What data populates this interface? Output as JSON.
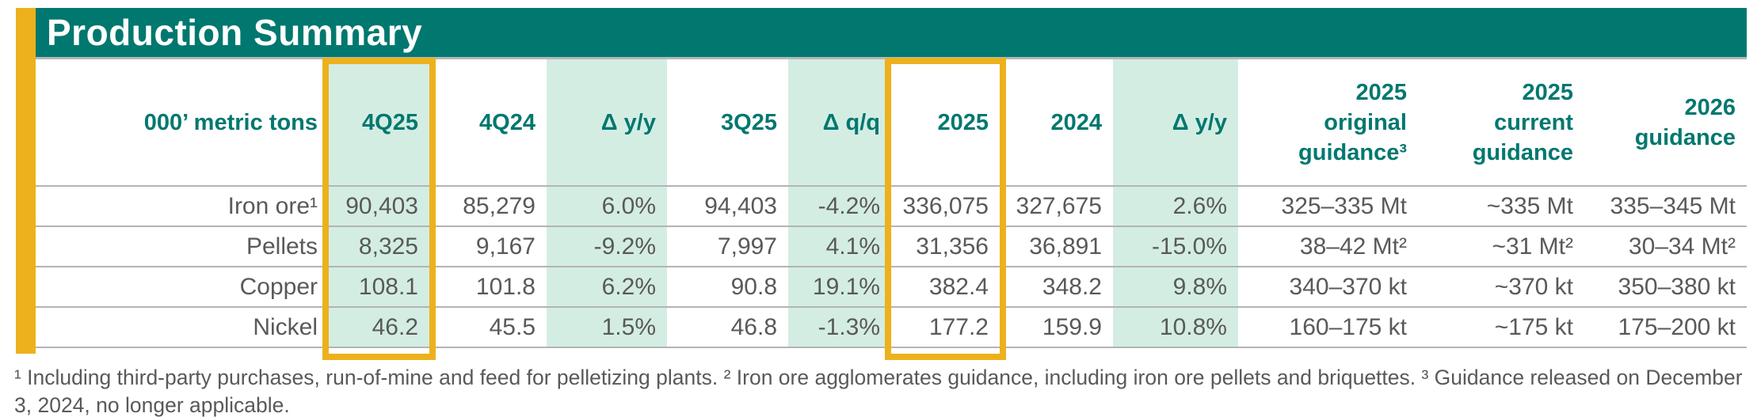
{
  "title": "Production Summary",
  "colors": {
    "teal": "#00786F",
    "gold": "#ECB11C",
    "mint": "#D4EDE3",
    "body_text": "#595959",
    "row_border": "#b4b4b4"
  },
  "table": {
    "unit_label": "000’ metric tons",
    "columns": [
      {
        "label": "4Q25",
        "bg": "mint",
        "gold_boxed": true
      },
      {
        "label": "4Q24",
        "bg": "white",
        "gold_boxed": false
      },
      {
        "label": "Δ y/y",
        "bg": "mint",
        "gold_boxed": false
      },
      {
        "label": "3Q25",
        "bg": "white",
        "gold_boxed": false
      },
      {
        "label": "Δ q/q",
        "bg": "mint",
        "gold_boxed": false
      },
      {
        "label": "2025",
        "bg": "white",
        "gold_boxed": true
      },
      {
        "label": "2024",
        "bg": "white",
        "gold_boxed": false
      },
      {
        "label": "Δ y/y",
        "bg": "mint",
        "gold_boxed": false
      },
      {
        "label": "2025\noriginal\nguidance³",
        "bg": "white",
        "gold_boxed": false
      },
      {
        "label": "2025\ncurrent\nguidance",
        "bg": "white",
        "gold_boxed": false
      },
      {
        "label": "2026\nguidance",
        "bg": "white",
        "gold_boxed": false
      }
    ],
    "rows": [
      {
        "label": "Iron ore¹",
        "values": [
          "90,403",
          "85,279",
          "6.0%",
          "94,403",
          "-4.2%",
          "336,075",
          "327,675",
          "2.6%",
          "325–335 Mt",
          "~335 Mt",
          "335–345 Mt"
        ]
      },
      {
        "label": "Pellets",
        "values": [
          "8,325",
          "9,167",
          "-9.2%",
          "7,997",
          "4.1%",
          "31,356",
          "36,891",
          "-15.0%",
          "38–42 Mt²",
          "~31 Mt²",
          "30–34 Mt²"
        ]
      },
      {
        "label": "Copper",
        "values": [
          "108.1",
          "101.8",
          "6.2%",
          "90.8",
          "19.1%",
          "382.4",
          "348.2",
          "9.8%",
          "340–370 kt",
          "~370 kt",
          "350–380 kt"
        ]
      },
      {
        "label": "Nickel",
        "values": [
          "46.2",
          "45.5",
          "1.5%",
          "46.8",
          "-1.3%",
          "177.2",
          "159.9",
          "10.8%",
          "160–175 kt",
          "~175 kt",
          "175–200 kt"
        ]
      }
    ]
  },
  "footnotes": {
    "text": "¹ Including third-party purchases, run-of-mine and feed for pelletizing plants. ² Iron ore agglomerates guidance, including iron ore pellets and briquettes. ³ Guidance released on December 3, 2024, no longer applicable."
  }
}
